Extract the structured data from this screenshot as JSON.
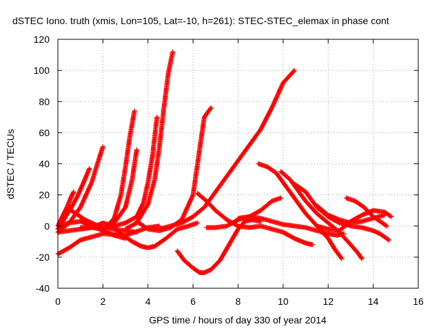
{
  "chart_data": {
    "type": "scatter",
    "title": "dSTEC Iono. truth (xmis, Lon=105, Lat=-10, h=261): STEC-STEC_elemax in phase cont",
    "xlabel": "GPS time / hours of day 330 of year 2014",
    "ylabel": "dSTEC  / TECUs",
    "xlim": [
      0,
      16
    ],
    "ylim": [
      -40,
      120
    ],
    "xticks": [
      "0",
      "2",
      "4",
      "6",
      "8",
      "10",
      "12",
      "14",
      "16"
    ],
    "yticks": [
      "-40",
      "-20",
      "0",
      "20",
      "40",
      "60",
      "80",
      "100",
      "120"
    ],
    "grid": true,
    "legend": "none",
    "marker": "plus",
    "color": "#ff0000",
    "series": [
      {
        "x": [
          0.0,
          0.2,
          0.4,
          0.6,
          0.7
        ],
        "y": [
          0,
          6,
          12,
          19,
          22
        ]
      },
      {
        "x": [
          0.0,
          0.3,
          0.6,
          0.9,
          1.2,
          1.4
        ],
        "y": [
          -2,
          5,
          12,
          20,
          30,
          37
        ]
      },
      {
        "x": [
          0.0,
          0.5,
          1.0,
          1.5,
          1.8,
          2.0
        ],
        "y": [
          -4,
          2,
          12,
          28,
          42,
          51
        ]
      },
      {
        "x": [
          0.6,
          1.2,
          1.8,
          2.4,
          3.0,
          3.5
        ],
        "y": [
          10,
          4,
          0,
          -2,
          -3,
          -4
        ]
      },
      {
        "x": [
          0.0,
          0.5,
          1.0,
          1.5,
          2.0,
          2.5,
          3.0
        ],
        "y": [
          0,
          2,
          3,
          0,
          -3,
          -6,
          -8
        ]
      },
      {
        "x": [
          0.0,
          0.5,
          1.0,
          1.5,
          2.0,
          2.5
        ],
        "y": [
          -4,
          -3,
          -2,
          -1,
          2,
          0
        ]
      },
      {
        "x": [
          1.0,
          1.5,
          2.0,
          2.5,
          3.0,
          3.3,
          3.5
        ],
        "y": [
          -1,
          -1,
          -2,
          2,
          12,
          30,
          49
        ]
      },
      {
        "x": [
          2.0,
          2.5,
          2.8,
          3.0,
          3.2,
          3.4
        ],
        "y": [
          -3,
          5,
          20,
          38,
          58,
          74
        ]
      },
      {
        "x": [
          2.3,
          2.8,
          3.3,
          3.7,
          4.0,
          4.3,
          4.8,
          5.3,
          5.8,
          6.2
        ],
        "y": [
          1,
          -5,
          -10,
          -13,
          -14,
          -13,
          -8,
          -2,
          0,
          2
        ]
      },
      {
        "x": [
          0.0,
          0.5,
          1.0,
          2.0,
          3.0,
          4.0,
          4.5
        ],
        "y": [
          -18,
          -14,
          -9,
          -5,
          -6,
          -1,
          0
        ]
      },
      {
        "x": [
          2.5,
          3.0,
          3.5,
          3.8,
          4.0,
          4.2,
          4.4
        ],
        "y": [
          0,
          2,
          6,
          15,
          28,
          45,
          70
        ]
      },
      {
        "x": [
          3.0,
          3.5,
          4.0,
          4.3,
          4.5,
          4.7,
          4.9,
          5.1
        ],
        "y": [
          -2,
          2,
          14,
          30,
          50,
          75,
          98,
          112
        ]
      },
      {
        "x": [
          3.5,
          4.0,
          4.5,
          5.0,
          5.5,
          6.0,
          6.3,
          6.5,
          6.8
        ],
        "y": [
          3,
          -2,
          -3,
          -1,
          4,
          20,
          50,
          70,
          76
        ]
      },
      {
        "x": [
          4.5,
          5.0,
          5.5,
          6.0,
          6.5,
          7.0,
          7.5,
          8.0,
          8.5,
          9.0,
          9.5,
          10.0,
          10.5
        ],
        "y": [
          -2,
          0,
          2,
          6,
          12,
          22,
          32,
          42,
          52,
          62,
          76,
          92,
          100
        ]
      },
      {
        "x": [
          5.3,
          5.6,
          6.0,
          6.3,
          6.5,
          6.8,
          7.2,
          7.6,
          8.0,
          8.3,
          8.6,
          9.0
        ],
        "y": [
          -16,
          -22,
          -27,
          -30,
          -30,
          -28,
          -22,
          -12,
          -2,
          3,
          4,
          3
        ]
      },
      {
        "x": [
          6.2,
          6.6,
          7.0,
          7.5,
          8.0,
          8.5,
          9.0,
          9.5,
          10.0,
          10.5,
          11.0,
          11.3
        ],
        "y": [
          21,
          16,
          10,
          4,
          0,
          -1,
          0,
          -2,
          -4,
          -8,
          -11,
          -12
        ]
      },
      {
        "x": [
          6.6,
          7.0,
          7.5,
          8.0,
          8.5,
          9.0,
          9.5,
          9.9
        ],
        "y": [
          -1,
          -1,
          0,
          4,
          6,
          10,
          16,
          18
        ]
      },
      {
        "x": [
          8.0,
          8.5,
          9.0,
          9.5,
          10.0,
          10.5,
          11.0,
          11.5,
          12.0,
          12.4,
          12.7
        ],
        "y": [
          5,
          6,
          5,
          3,
          1,
          0,
          -1,
          -3,
          -5,
          -6,
          -5
        ]
      },
      {
        "x": [
          8.9,
          9.3,
          9.7,
          10.0,
          10.5,
          11.0,
          11.5,
          12.0,
          12.3,
          12.6
        ],
        "y": [
          40,
          38,
          34,
          28,
          18,
          8,
          0,
          -8,
          -15,
          -21
        ]
      },
      {
        "x": [
          9.9,
          10.3,
          10.7,
          11.0,
          11.5,
          12.0,
          12.5,
          13.0,
          13.3,
          13.5
        ],
        "y": [
          35,
          30,
          22,
          16,
          8,
          2,
          -4,
          -12,
          -17,
          -21
        ]
      },
      {
        "x": [
          10.5,
          11.0,
          11.5,
          12.0,
          12.5,
          13.0,
          13.5,
          14.0,
          14.3,
          14.7
        ],
        "y": [
          27,
          22,
          12,
          6,
          2,
          0,
          -1,
          -3,
          -5,
          -9
        ]
      },
      {
        "x": [
          11.5,
          12.0,
          12.5,
          13.0,
          13.5,
          14.0,
          14.5
        ],
        "y": [
          13,
          7,
          4,
          2,
          3,
          5,
          7
        ]
      },
      {
        "x": [
          11.5,
          12.0,
          12.5,
          13.0,
          13.5,
          14.0,
          14.5,
          14.8
        ],
        "y": [
          0,
          -2,
          -3,
          3,
          7,
          10,
          9,
          6
        ]
      },
      {
        "x": [
          12.8,
          13.2,
          13.6,
          14.0,
          14.4,
          14.6
        ],
        "y": [
          18,
          16,
          12,
          6,
          2,
          0
        ]
      }
    ]
  }
}
